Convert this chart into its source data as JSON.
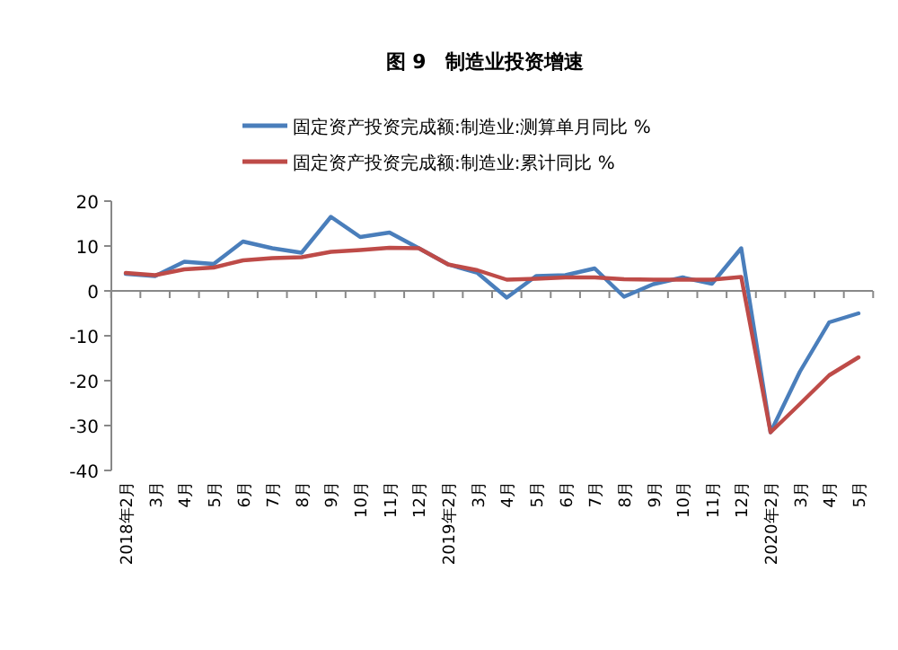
{
  "chart_data": {
    "type": "line",
    "title": "图 9　制造业投资增速",
    "categories": [
      "2018年2月",
      "3月",
      "4月",
      "5月",
      "6月",
      "7月",
      "8月",
      "9月",
      "10月",
      "11月",
      "12月",
      "2019年2月",
      "3月",
      "4月",
      "5月",
      "6月",
      "7月",
      "8月",
      "9月",
      "10月",
      "11月",
      "12月",
      "2020年2月",
      "3月",
      "4月",
      "5月"
    ],
    "series": [
      {
        "name": "固定资产投资完成额:制造业:测算单月同比 %",
        "color": "#4a7ebb",
        "values": [
          3.8,
          3.3,
          6.5,
          6,
          11,
          9.5,
          8.5,
          16.5,
          12,
          13,
          9.5,
          5.9,
          4,
          -1.5,
          3.3,
          3.5,
          5,
          -1.3,
          1.5,
          3,
          1.6,
          9.5,
          -31.5,
          -18,
          -7,
          -5
        ]
      },
      {
        "name": "固定资产投资完成额:制造业:累计同比 %",
        "color": "#be4b48",
        "values": [
          4,
          3.5,
          4.8,
          5.2,
          6.8,
          7.3,
          7.5,
          8.7,
          9.1,
          9.6,
          9.5,
          5.9,
          4.6,
          2.5,
          2.7,
          3,
          3,
          2.6,
          2.5,
          2.5,
          2.5,
          3.1,
          -31.5,
          -25.2,
          -18.8,
          -14.8
        ]
      }
    ],
    "ylim": [
      -40,
      20
    ],
    "yticks": [
      -40,
      -30,
      -20,
      -10,
      0,
      10,
      20
    ],
    "legend": "top"
  }
}
